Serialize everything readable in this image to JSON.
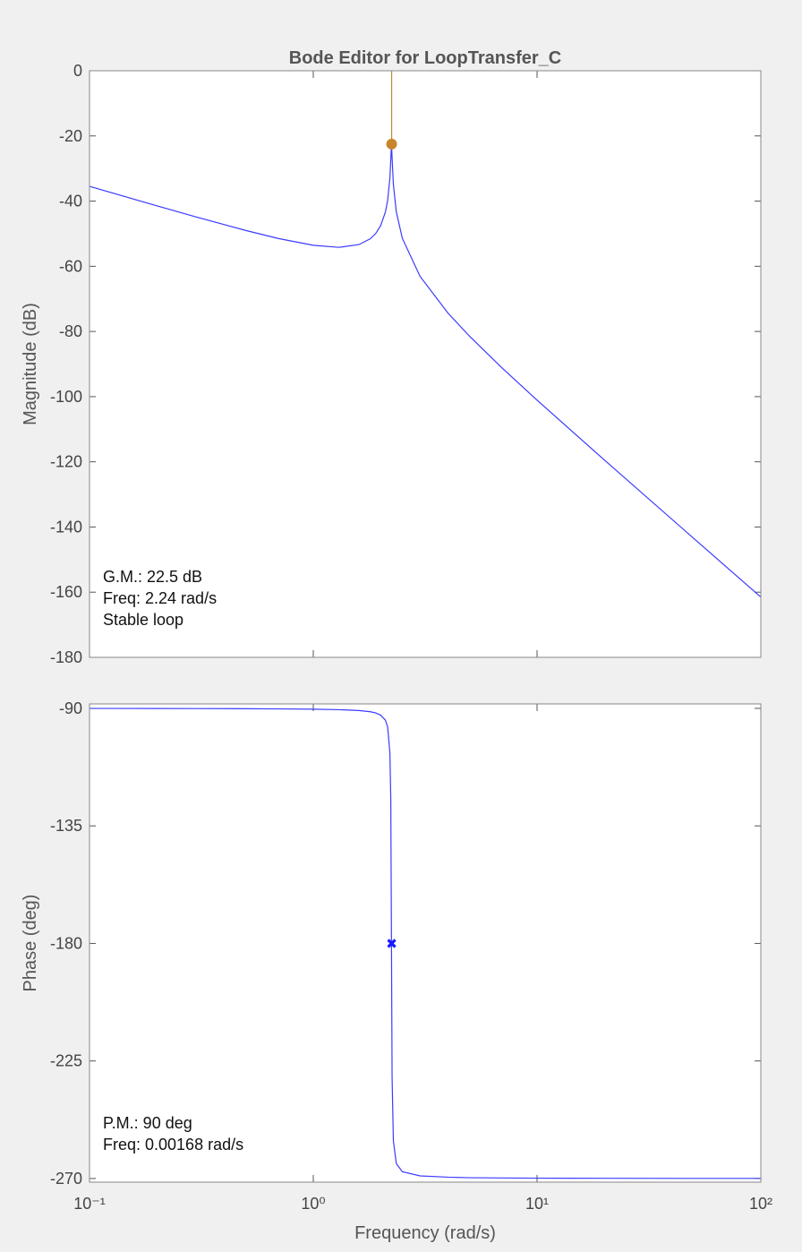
{
  "chart_data": [
    {
      "type": "line",
      "title": "Bode Editor for LoopTransfer_C",
      "ylabel": "Magnitude (dB)",
      "xscale": "log",
      "xlim": [
        0.1,
        100
      ],
      "xticks": [
        0.1,
        1,
        10,
        100
      ],
      "xtick_labels": false,
      "ylim": [
        -180,
        0
      ],
      "yticks": [
        -180,
        -160,
        -140,
        -120,
        -100,
        -80,
        -60,
        -40,
        -20,
        0
      ],
      "x": [
        0.1,
        0.2,
        0.3,
        0.5,
        0.7,
        1.0,
        1.3,
        1.6,
        1.8,
        1.9,
        2.0,
        2.1,
        2.15,
        2.2,
        2.22,
        2.236,
        2.25,
        2.28,
        2.35,
        2.5,
        3,
        4,
        5,
        7,
        10,
        20,
        50,
        100
      ],
      "series": [
        {
          "color": "#3b3bff",
          "values": [
            -35.47,
            -41.44,
            -44.87,
            -49.02,
            -51.49,
            -53.55,
            -54.19,
            -53.34,
            -51.53,
            -49.95,
            -47.53,
            -43.37,
            -39.77,
            -32.83,
            -27.24,
            -22.46,
            -26.63,
            -34.9,
            -43.33,
            -51.41,
            -63.09,
            -74.38,
            -81.51,
            -91.28,
            -101.07,
            -119.46,
            -143.43,
            -161.51
          ]
        }
      ],
      "marker": {
        "x": 2.24,
        "y": -22.5,
        "color": "#c8862a"
      },
      "annotations": [
        "G.M.: 22.5 dB",
        "Freq: 2.24 rad/s",
        "Stable loop"
      ]
    },
    {
      "type": "line",
      "ylabel": "Phase (deg)",
      "xlabel": "Frequency (rad/s)",
      "xscale": "log",
      "xlim": [
        0.1,
        100
      ],
      "xticks": [
        {
          "value": 0.1,
          "label": "10⁻¹"
        },
        {
          "value": 1,
          "label": "10⁰"
        },
        {
          "value": 10,
          "label": "10¹"
        },
        {
          "value": 100,
          "label": "10²"
        }
      ],
      "xtick_labels": true,
      "ylim": [
        -271.4,
        -88.3
      ],
      "yticks": [
        -270,
        -225,
        -180,
        -135,
        -90
      ],
      "x": [
        0.1,
        0.2,
        0.3,
        0.5,
        0.7,
        1.0,
        1.3,
        1.6,
        1.8,
        1.9,
        2.0,
        2.1,
        2.15,
        2.2,
        2.22,
        2.236,
        2.25,
        2.28,
        2.35,
        2.5,
        3,
        4,
        5,
        7,
        10,
        20,
        50,
        100
      ],
      "series": [
        {
          "color": "#3b3bff",
          "values": [
            -90.03,
            -90.05,
            -90.08,
            -90.13,
            -90.2,
            -90.32,
            -90.5,
            -90.84,
            -91.31,
            -91.75,
            -92.6,
            -94.5,
            -97.2,
            -107.1,
            -124.7,
            -180,
            -231.2,
            -255.6,
            -264.3,
            -267.4,
            -269.0,
            -269.5,
            -269.7,
            -269.8,
            -269.87,
            -269.93,
            -269.97,
            -269.97
          ]
        }
      ],
      "marker": {
        "x": 2.24,
        "y": -180,
        "color": "#1a1aff"
      },
      "annotations": [
        "P.M.: 90 deg",
        "Freq: 0.00168 rad/s"
      ]
    }
  ]
}
